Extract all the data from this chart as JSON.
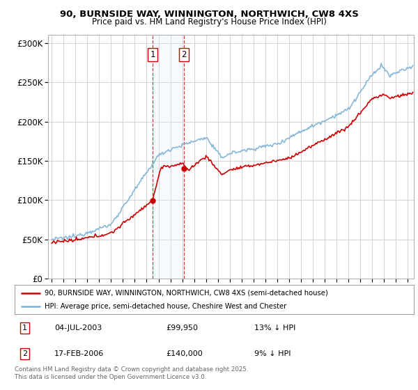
{
  "title_line1": "90, BURNSIDE WAY, WINNINGTON, NORTHWICH, CW8 4XS",
  "title_line2": "Price paid vs. HM Land Registry's House Price Index (HPI)",
  "legend_line1": "90, BURNSIDE WAY, WINNINGTON, NORTHWICH, CW8 4XS (semi-detached house)",
  "legend_line2": "HPI: Average price, semi-detached house, Cheshire West and Chester",
  "footer": "Contains HM Land Registry data © Crown copyright and database right 2025.\nThis data is licensed under the Open Government Licence v3.0.",
  "transactions": [
    {
      "label": "1",
      "date": "04-JUL-2003",
      "price": "£99,950",
      "note": "13% ↓ HPI",
      "x_year": 2003.5,
      "price_val": 99950
    },
    {
      "label": "2",
      "date": "17-FEB-2006",
      "price": "£140,000",
      "note": "9% ↓ HPI",
      "x_year": 2006.12,
      "price_val": 140000
    }
  ],
  "property_color": "#cc0000",
  "hpi_color": "#7ab0d4",
  "highlight_fill": "#ddeeff",
  "marker_box_color": "#cc0000",
  "ylim": [
    0,
    310000
  ],
  "yticks": [
    0,
    50000,
    100000,
    150000,
    200000,
    250000,
    300000
  ],
  "xlim_start": 1994.7,
  "xlim_end": 2025.5,
  "background_color": "#ffffff",
  "grid_color": "#cccccc"
}
